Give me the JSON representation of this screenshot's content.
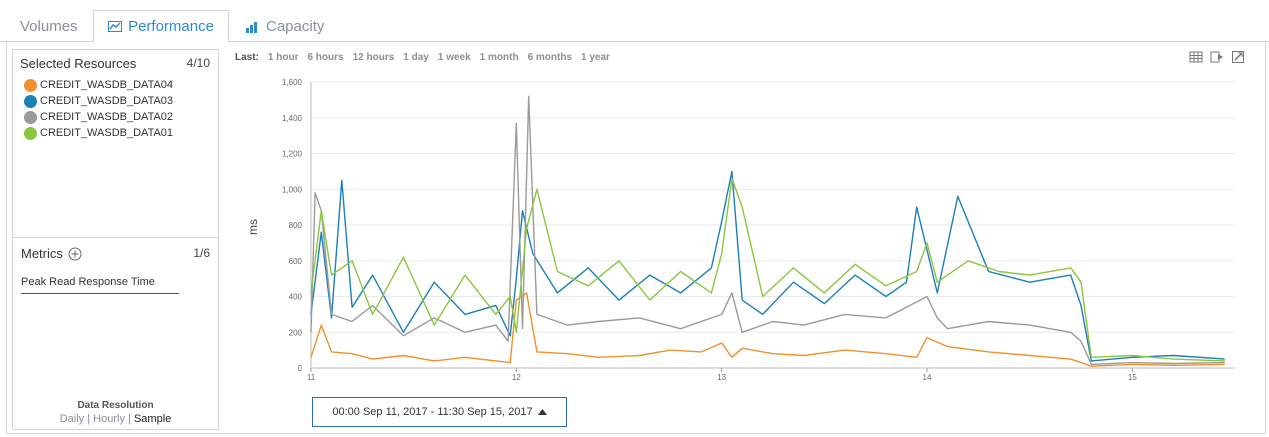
{
  "tabs": [
    {
      "label": "Volumes"
    },
    {
      "label": "Performance"
    },
    {
      "label": "Capacity"
    }
  ],
  "resources": {
    "title": "Selected Resources",
    "count": "4/10",
    "items": [
      {
        "label": "CREDIT_WASDB_DATA04",
        "color": "#f0912e"
      },
      {
        "label": "CREDIT_WASDB_DATA03",
        "color": "#1b80b8"
      },
      {
        "label": "CREDIT_WASDB_DATA02",
        "color": "#9a9a9a"
      },
      {
        "label": "CREDIT_WASDB_DATA01",
        "color": "#8cc63e"
      }
    ]
  },
  "metrics": {
    "title": "Metrics",
    "count": "1/6",
    "items": [
      {
        "label": "Peak Read Response Time"
      }
    ]
  },
  "resolution": {
    "label": "Data Resolution",
    "options": [
      "Daily",
      "Hourly",
      "Sample"
    ],
    "selected": "Sample"
  },
  "range": {
    "last_label": "Last:",
    "options": [
      "1 hour",
      "6 hours",
      "12 hours",
      "1 day",
      "1 week",
      "1 month",
      "6 months",
      "1 year"
    ]
  },
  "time_range": {
    "label": "00:00 Sep 11, 2017 - 11:30 Sep 15, 2017"
  },
  "chart_data": {
    "type": "line",
    "title": "",
    "xlabel": "",
    "ylabel": "ms",
    "xlim": [
      11,
      15.5
    ],
    "ylim": [
      0,
      1600
    ],
    "y_ticks": [
      "0",
      "200",
      "400",
      "600",
      "800",
      "1,000",
      "1,200",
      "1,400",
      "1,600"
    ],
    "y_tick_values": [
      0,
      200,
      400,
      600,
      800,
      1000,
      1200,
      1400,
      1600
    ],
    "x_ticks": [
      "11",
      "12",
      "13",
      "14",
      "15"
    ],
    "x_tick_values": [
      11,
      12,
      13,
      14,
      15
    ],
    "series": [
      {
        "name": "CREDIT_WASDB_DATA04",
        "color": "#f0912e",
        "x": [
          11.0,
          11.05,
          11.1,
          11.2,
          11.3,
          11.45,
          11.6,
          11.75,
          11.9,
          11.97,
          12.0,
          12.05,
          12.1,
          12.25,
          12.4,
          12.6,
          12.75,
          12.9,
          13.0,
          13.05,
          13.1,
          13.25,
          13.4,
          13.6,
          13.8,
          13.95,
          14.0,
          14.1,
          14.3,
          14.5,
          14.7,
          14.75,
          14.8,
          15.0,
          15.2,
          15.45
        ],
        "values": [
          60,
          240,
          90,
          80,
          50,
          70,
          40,
          60,
          40,
          30,
          380,
          420,
          90,
          80,
          60,
          70,
          100,
          90,
          140,
          60,
          110,
          80,
          70,
          100,
          80,
          60,
          170,
          120,
          90,
          70,
          50,
          30,
          10,
          20,
          15,
          20
        ]
      },
      {
        "name": "CREDIT_WASDB_DATA03",
        "color": "#1b80b8",
        "x": [
          11.0,
          11.05,
          11.1,
          11.15,
          11.2,
          11.3,
          11.45,
          11.6,
          11.75,
          11.9,
          11.97,
          12.0,
          12.03,
          12.08,
          12.2,
          12.35,
          12.5,
          12.65,
          12.8,
          12.95,
          13.0,
          13.05,
          13.1,
          13.2,
          13.35,
          13.5,
          13.65,
          13.8,
          13.9,
          13.95,
          14.05,
          14.15,
          14.3,
          14.5,
          14.7,
          14.75,
          14.8,
          15.0,
          15.2,
          15.45
        ],
        "values": [
          300,
          760,
          280,
          1050,
          340,
          520,
          200,
          480,
          300,
          350,
          180,
          500,
          880,
          640,
          420,
          560,
          380,
          520,
          420,
          560,
          820,
          1100,
          380,
          300,
          480,
          360,
          520,
          400,
          480,
          900,
          420,
          960,
          540,
          480,
          520,
          350,
          40,
          60,
          70,
          50
        ]
      },
      {
        "name": "CREDIT_WASDB_DATA02",
        "color": "#9a9a9a",
        "x": [
          11.0,
          11.02,
          11.05,
          11.1,
          11.2,
          11.3,
          11.45,
          11.6,
          11.75,
          11.9,
          11.96,
          12.0,
          12.03,
          12.06,
          12.1,
          12.25,
          12.4,
          12.6,
          12.8,
          13.0,
          13.05,
          13.1,
          13.25,
          13.4,
          13.6,
          13.8,
          14.0,
          14.05,
          14.1,
          14.3,
          14.5,
          14.7,
          14.75,
          14.8,
          15.0,
          15.2,
          15.45
        ],
        "values": [
          200,
          980,
          880,
          300,
          260,
          350,
          180,
          280,
          200,
          240,
          150,
          1370,
          220,
          1520,
          300,
          240,
          260,
          280,
          220,
          300,
          420,
          200,
          260,
          240,
          300,
          280,
          400,
          280,
          220,
          260,
          240,
          200,
          150,
          20,
          30,
          25,
          30
        ]
      },
      {
        "name": "CREDIT_WASDB_DATA01",
        "color": "#8cc63e",
        "x": [
          11.0,
          11.05,
          11.1,
          11.2,
          11.3,
          11.45,
          11.6,
          11.75,
          11.9,
          11.97,
          12.0,
          12.05,
          12.1,
          12.2,
          12.35,
          12.5,
          12.65,
          12.8,
          12.95,
          13.0,
          13.05,
          13.1,
          13.2,
          13.35,
          13.5,
          13.65,
          13.8,
          13.95,
          14.0,
          14.05,
          14.2,
          14.35,
          14.5,
          14.7,
          14.75,
          14.8,
          15.0,
          15.2,
          15.45
        ],
        "values": [
          420,
          880,
          520,
          600,
          300,
          620,
          240,
          520,
          300,
          400,
          200,
          780,
          1000,
          540,
          460,
          600,
          380,
          540,
          420,
          640,
          1060,
          900,
          400,
          560,
          420,
          580,
          460,
          540,
          700,
          480,
          600,
          540,
          520,
          560,
          480,
          60,
          70,
          50,
          40
        ]
      }
    ]
  }
}
